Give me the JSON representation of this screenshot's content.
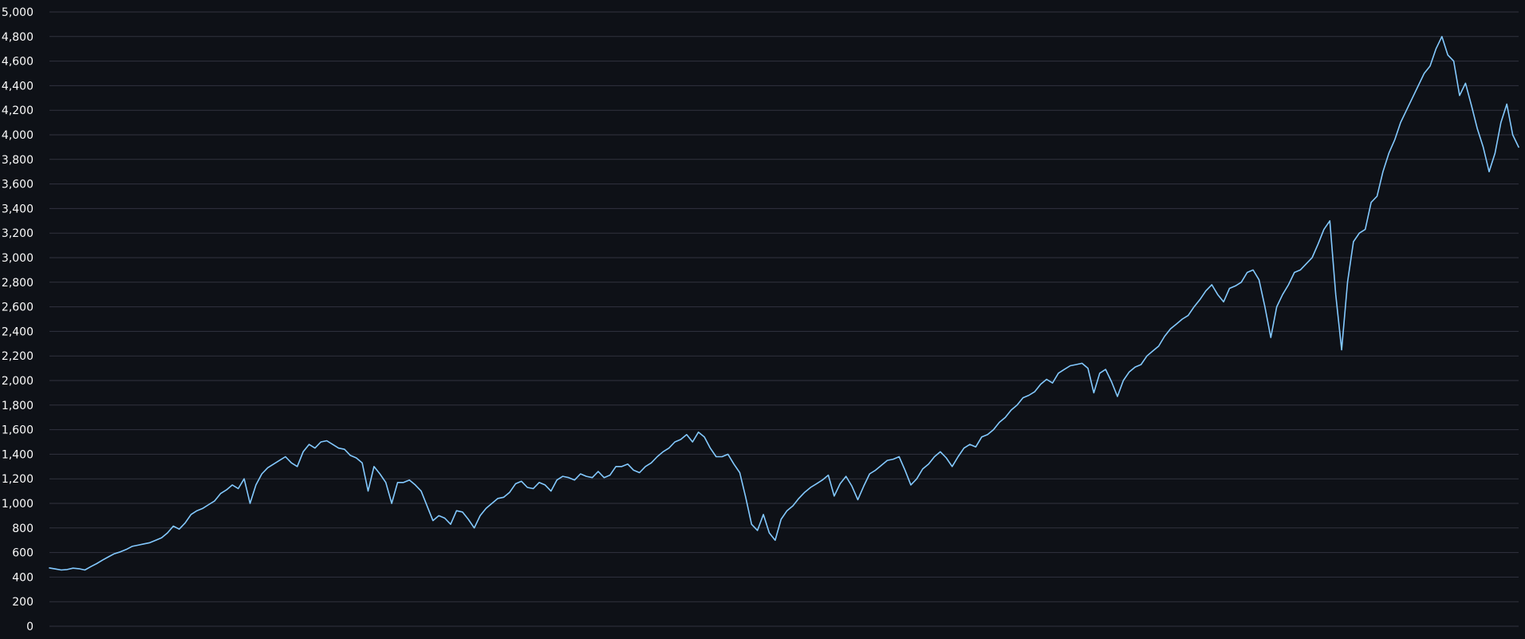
{
  "chart_data": {
    "type": "line",
    "title": "",
    "xlabel": "",
    "ylabel": "",
    "ylim": [
      0,
      5000
    ],
    "y_ticks": [
      0,
      200,
      400,
      600,
      800,
      1000,
      1200,
      1400,
      1600,
      1800,
      2000,
      2200,
      2400,
      2600,
      2800,
      3000,
      3200,
      3400,
      3600,
      3800,
      4000,
      4200,
      4400,
      4600,
      4800,
      5000
    ],
    "y_tick_labels": [
      "0",
      "200",
      "400",
      "600",
      "800",
      "1,000",
      "1,200",
      "1,400",
      "1,600",
      "1,800",
      "2,000",
      "2,200",
      "2,400",
      "2,600",
      "2,800",
      "3,000",
      "3,200",
      "3,400",
      "3,600",
      "3,800",
      "4,000",
      "4,200",
      "4,400",
      "4,600",
      "4,800",
      "5,000"
    ],
    "grid": "horizontal",
    "background_color": "#0e1117",
    "grid_color": "#31333f",
    "tick_label_color": "#fafafa",
    "series": [
      {
        "color": "#83c9ff",
        "values": [
          475,
          466,
          458,
          462,
          473,
          468,
          458,
          485,
          510,
          538,
          565,
          590,
          605,
          625,
          650,
          660,
          670,
          680,
          700,
          720,
          760,
          815,
          790,
          840,
          910,
          940,
          960,
          990,
          1020,
          1080,
          1110,
          1150,
          1120,
          1200,
          1000,
          1150,
          1240,
          1290,
          1320,
          1350,
          1380,
          1330,
          1300,
          1420,
          1480,
          1450,
          1500,
          1510,
          1480,
          1450,
          1440,
          1390,
          1370,
          1330,
          1100,
          1300,
          1240,
          1170,
          1000,
          1170,
          1170,
          1190,
          1150,
          1100,
          980,
          860,
          900,
          880,
          830,
          940,
          930,
          870,
          800,
          900,
          960,
          1000,
          1040,
          1050,
          1090,
          1160,
          1180,
          1130,
          1120,
          1170,
          1150,
          1100,
          1190,
          1220,
          1210,
          1190,
          1240,
          1220,
          1210,
          1260,
          1210,
          1230,
          1300,
          1300,
          1320,
          1270,
          1250,
          1300,
          1330,
          1380,
          1420,
          1450,
          1500,
          1520,
          1560,
          1500,
          1580,
          1540,
          1450,
          1380,
          1380,
          1400,
          1320,
          1250,
          1050,
          830,
          780,
          910,
          760,
          700,
          870,
          940,
          980,
          1040,
          1090,
          1130,
          1160,
          1190,
          1230,
          1060,
          1160,
          1220,
          1140,
          1030,
          1140,
          1240,
          1270,
          1310,
          1350,
          1360,
          1380,
          1270,
          1150,
          1200,
          1280,
          1320,
          1380,
          1420,
          1370,
          1300,
          1380,
          1450,
          1480,
          1460,
          1540,
          1560,
          1600,
          1660,
          1700,
          1760,
          1800,
          1860,
          1880,
          1910,
          1970,
          2010,
          1980,
          2060,
          2090,
          2120,
          2130,
          2140,
          2100,
          1900,
          2060,
          2090,
          1990,
          1870,
          2000,
          2070,
          2110,
          2130,
          2200,
          2240,
          2280,
          2360,
          2420,
          2460,
          2500,
          2530,
          2600,
          2660,
          2730,
          2780,
          2700,
          2640,
          2750,
          2770,
          2800,
          2880,
          2900,
          2820,
          2600,
          2350,
          2600,
          2700,
          2780,
          2880,
          2900,
          2950,
          3000,
          3110,
          3230,
          3300,
          2700,
          2250,
          2800,
          3130,
          3200,
          3230,
          3450,
          3500,
          3700,
          3850,
          3960,
          4100,
          4200,
          4300,
          4400,
          4500,
          4560,
          4700,
          4800,
          4650,
          4600,
          4320,
          4420,
          4240,
          4050,
          3900,
          3700,
          3850,
          4100,
          4250,
          4000,
          3900
        ]
      }
    ]
  }
}
